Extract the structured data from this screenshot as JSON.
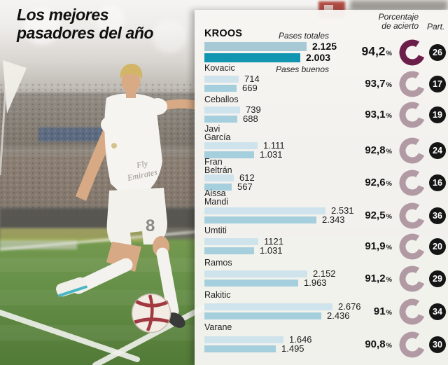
{
  "title": {
    "line1": "Los mejores",
    "line2": "pasadores del año"
  },
  "columns": {
    "pct_line1": "Porcentaje",
    "pct_line2": "de acierto",
    "part": "Part."
  },
  "legend": {
    "totales": "Pases totales",
    "buenos": "Pases buenos"
  },
  "percent_suffix": "%",
  "photo": {
    "jersey_line1": "Fly",
    "jersey_line2": "Emirates",
    "shorts_number": "8"
  },
  "colors": {
    "bar_total": "#cfe3ec",
    "bar_buenos": "#a6cfde",
    "kroos_total": "#a7c9d6",
    "kroos_buenos": "#1295b0",
    "ring": "#b29aa4",
    "ring_highlight": "#6b1e49",
    "badge_bg": "#151515",
    "badge_text": "#ffffff",
    "panel_bg": "#f4f3f0"
  },
  "chart_data": {
    "type": "bar",
    "orientation": "horizontal",
    "title": "Los mejores pasadores del año",
    "series_labels": [
      "Pases totales",
      "Pases buenos"
    ],
    "value_note": "passes; accuracy percent and matches played (Part.)",
    "players": [
      {
        "name": "KROOS",
        "totales": 2125,
        "buenos": 2003,
        "totales_label": "2.125",
        "buenos_label": "2.003",
        "pct_label": "94,2",
        "part": "26",
        "highlight": true
      },
      {
        "name": "Kovacic",
        "totales": 714,
        "buenos": 669,
        "totales_label": "714",
        "buenos_label": "669",
        "pct_label": "93,7",
        "part": "17",
        "highlight": false
      },
      {
        "name": "Ceballos",
        "totales": 739,
        "buenos": 688,
        "totales_label": "739",
        "buenos_label": "688",
        "pct_label": "93,1",
        "part": "19",
        "highlight": false
      },
      {
        "name": "Javi\nGarcía",
        "totales": 1111,
        "buenos": 1031,
        "totales_label": "1.111",
        "buenos_label": "1.031",
        "pct_label": "92,8",
        "part": "24",
        "highlight": false
      },
      {
        "name": "Fran\nBeltrán",
        "totales": 612,
        "buenos": 567,
        "totales_label": "612",
        "buenos_label": "567",
        "pct_label": "92,6",
        "part": "16",
        "highlight": false
      },
      {
        "name": "Aissa\nMandi",
        "totales": 2531,
        "buenos": 2343,
        "totales_label": "2.531",
        "buenos_label": "2.343",
        "pct_label": "92,5",
        "part": "36",
        "highlight": false
      },
      {
        "name": "Umtiti",
        "totales": 1121,
        "buenos": 1031,
        "totales_label": "1121",
        "buenos_label": "1.031",
        "pct_label": "91,9",
        "part": "20",
        "highlight": false
      },
      {
        "name": "Ramos",
        "totales": 2152,
        "buenos": 1963,
        "totales_label": "2.152",
        "buenos_label": "1.963",
        "pct_label": "91,2",
        "part": "29",
        "highlight": false
      },
      {
        "name": "Rakitic",
        "totales": 2676,
        "buenos": 2436,
        "totales_label": "2.676",
        "buenos_label": "2.436",
        "pct_label": "91",
        "part": "34",
        "highlight": false
      },
      {
        "name": "Varane",
        "totales": 1646,
        "buenos": 1495,
        "totales_label": "1.646",
        "buenos_label": "1.495",
        "pct_label": "90,8",
        "part": "30",
        "highlight": false
      }
    ]
  }
}
